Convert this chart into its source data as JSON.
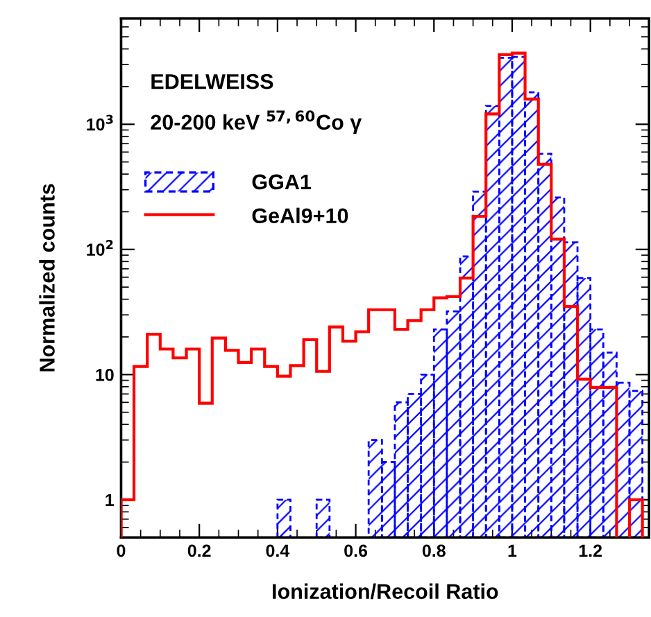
{
  "chart_data": {
    "type": "histogram",
    "xlabel": "Ionization/Recoil Ratio",
    "ylabel": "Normalized counts",
    "annotations": [
      "EDELWEISS",
      "20-200 keV $^{57,60}$Co γ"
    ],
    "bins": [
      0,
      0.033,
      0.067,
      0.1,
      0.133,
      0.167,
      0.2,
      0.233,
      0.267,
      0.3,
      0.333,
      0.367,
      0.4,
      0.433,
      0.467,
      0.5,
      0.533,
      0.567,
      0.6,
      0.633,
      0.667,
      0.7,
      0.733,
      0.767,
      0.8,
      0.833,
      0.867,
      0.9,
      0.933,
      0.967,
      1.0,
      1.033,
      1.067,
      1.1,
      1.133,
      1.167,
      1.2,
      1.233,
      1.267,
      1.3,
      1.333
    ],
    "series": [
      {
        "name": "GGA1",
        "color": "#0000ff",
        "line_style": "dashed",
        "values": [
          null,
          null,
          null,
          null,
          null,
          null,
          null,
          null,
          null,
          null,
          null,
          null,
          1,
          null,
          null,
          1,
          null,
          null,
          null,
          3,
          2,
          6,
          7,
          10,
          23,
          32,
          88,
          290,
          1400,
          3400,
          3450,
          1800,
          580,
          260,
          114,
          59,
          23,
          15,
          8.6,
          7.4
        ]
      },
      {
        "name": "GeAl9+10",
        "color": "#ff0000",
        "line_style": "solid",
        "values": [
          1,
          11.6,
          21,
          16,
          13.6,
          16,
          5.9,
          19.6,
          15.6,
          12.5,
          16,
          11.6,
          9.7,
          11.8,
          19,
          10.6,
          24,
          18.5,
          22,
          33,
          33,
          23,
          27,
          33,
          41,
          42,
          59,
          184,
          1210,
          3600,
          3700,
          1590,
          480,
          121,
          35,
          9.2,
          7.9,
          7.9,
          null,
          1
        ]
      }
    ],
    "log": "y",
    "xlim": [
      0,
      1.35
    ],
    "xticks": [
      0,
      0.2,
      0.4,
      0.6,
      0.8,
      1,
      1.2
    ],
    "ylim": [
      0.5,
      7000
    ],
    "yticks": [
      1,
      10,
      {
        "value": 100,
        "label": "10$^{2}$"
      },
      {
        "value": 1000,
        "label": "10$^{3}$"
      }
    ],
    "legend": "top left"
  }
}
